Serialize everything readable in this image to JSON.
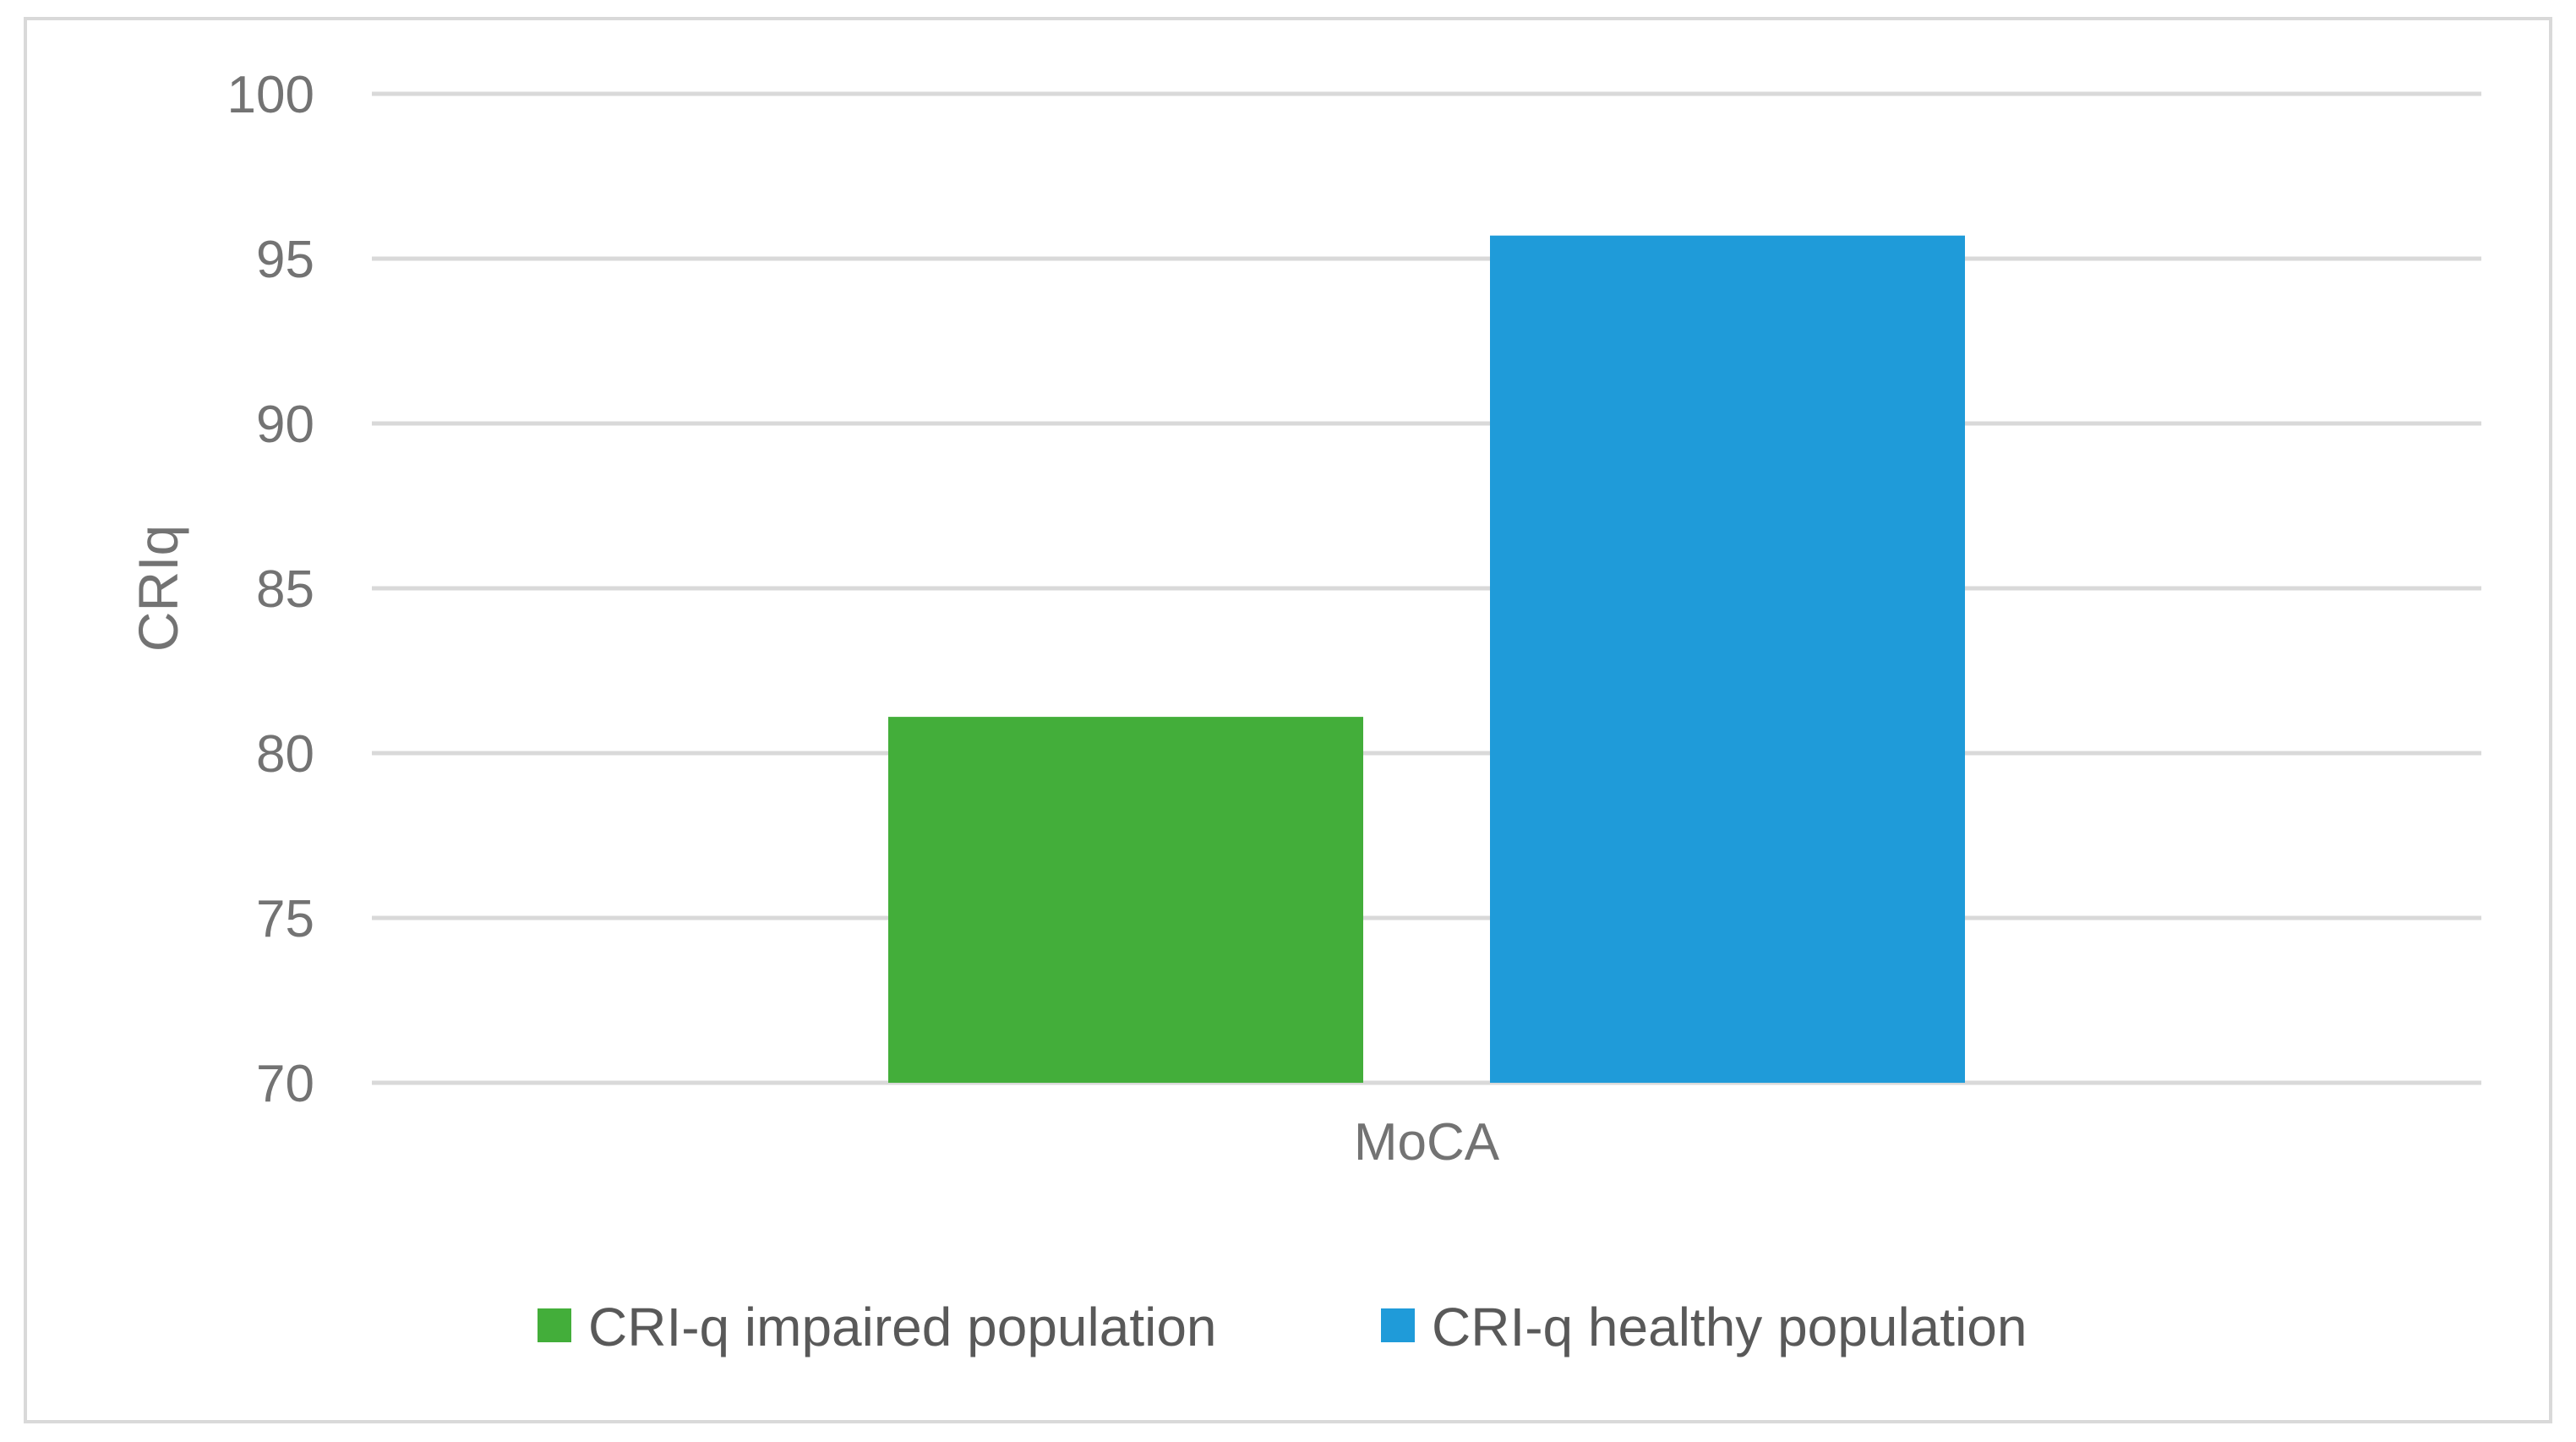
{
  "chart_data": {
    "type": "bar",
    "title": "",
    "xlabel": "",
    "ylabel": "CRIq",
    "categories": [
      "MoCA"
    ],
    "series": [
      {
        "name": "CRI-q impaired population",
        "values": [
          81.1
        ],
        "color": "#43ae3a"
      },
      {
        "name": "CRI-q healthy population",
        "values": [
          95.7
        ],
        "color": "#1f9bd9"
      }
    ],
    "ylim": [
      70,
      100
    ],
    "yticks": [
      70,
      75,
      80,
      85,
      90,
      95,
      100
    ],
    "grid": true,
    "legend_position": "bottom"
  }
}
